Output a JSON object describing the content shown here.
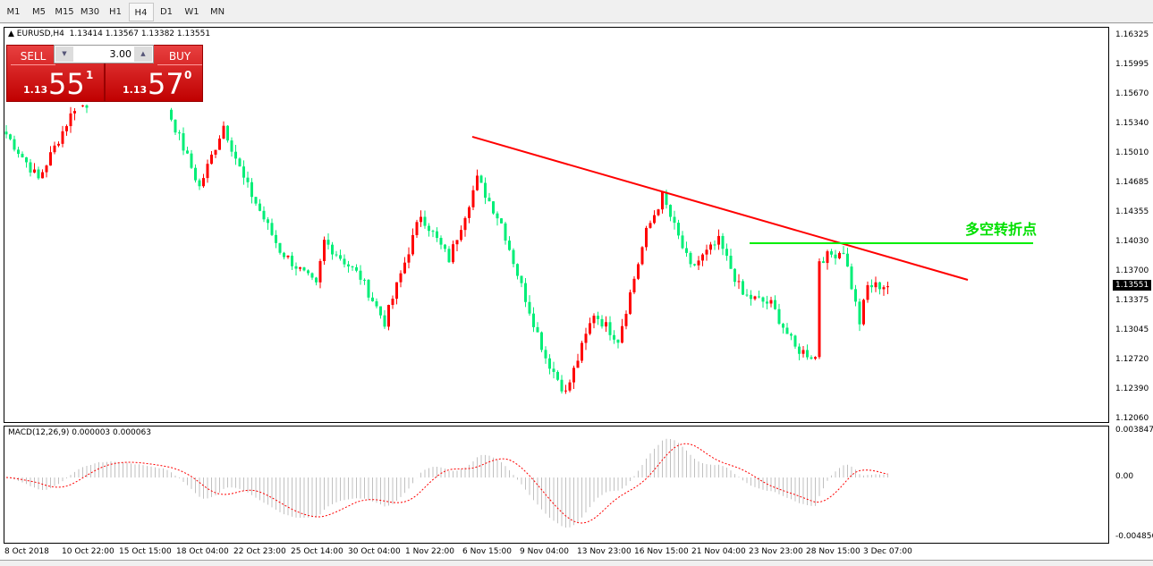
{
  "timeframes": [
    "M1",
    "M5",
    "M15",
    "M30",
    "H1",
    "H4",
    "D1",
    "W1",
    "MN"
  ],
  "active_timeframe": "H4",
  "symbol_line": {
    "symbol": "EURUSD,H4",
    "ohlc": "1.13414 1.13567 1.13382 1.13551"
  },
  "trade_panel": {
    "sell_label": "SELL",
    "buy_label": "BUY",
    "lot": "3.00",
    "sell_prefix": "1.13",
    "sell_big": "55",
    "sell_sup": "1",
    "buy_prefix": "1.13",
    "buy_big": "57",
    "buy_sup": "0"
  },
  "price_axis": [
    "1.16325",
    "1.15995",
    "1.15670",
    "1.15340",
    "1.15010",
    "1.14685",
    "1.14355",
    "1.14030",
    "1.13700",
    "1.13375",
    "1.13045",
    "1.12720",
    "1.12390",
    "1.12060"
  ],
  "current_price": "1.13551",
  "macd": {
    "label": "MACD(12,26,9) 0.000003 0.000063",
    "axis": [
      "0.003847",
      "0.00",
      "-0.004856"
    ]
  },
  "time_axis": [
    "8 Oct 2018",
    "10 Oct 22:00",
    "15 Oct 15:00",
    "18 Oct 04:00",
    "22 Oct 23:00",
    "25 Oct 14:00",
    "30 Oct 04:00",
    "1 Nov 22:00",
    "6 Nov 15:00",
    "9 Nov 04:00",
    "13 Nov 23:00",
    "16 Nov 15:00",
    "21 Nov 04:00",
    "23 Nov 23:00",
    "28 Nov 15:00",
    "3 Dec 07:00"
  ],
  "annotation": "多空转折点",
  "colors": {
    "bull": "#ff0000",
    "bear": "#00ee77",
    "trendline": "#ff0000",
    "level": "#00ee00",
    "macd_hist": "#c0c0c0",
    "signal": "#ff0000"
  },
  "chart_data": {
    "type": "candlestick",
    "price_range": [
      1.1206,
      1.16325
    ],
    "path": [
      [
        0,
        1.1523
      ],
      [
        8,
        1.1473
      ],
      [
        17,
        1.1553
      ],
      [
        26,
        1.1563
      ],
      [
        39,
        1.1563
      ],
      [
        48,
        1.1464
      ],
      [
        54,
        1.1533
      ],
      [
        59,
        1.1473
      ],
      [
        68,
        1.1394
      ],
      [
        77,
        1.1354
      ],
      [
        79,
        1.1404
      ],
      [
        88,
        1.1364
      ],
      [
        94,
        1.1314
      ],
      [
        103,
        1.1434
      ],
      [
        110,
        1.1384
      ],
      [
        117,
        1.1473
      ],
      [
        123,
        1.1424
      ],
      [
        128,
        1.1354
      ],
      [
        134,
        1.1275
      ],
      [
        139,
        1.1235
      ],
      [
        146,
        1.1324
      ],
      [
        152,
        1.1295
      ],
      [
        159,
        1.1414
      ],
      [
        163,
        1.1454
      ],
      [
        170,
        1.1374
      ],
      [
        177,
        1.1404
      ],
      [
        183,
        1.1344
      ],
      [
        190,
        1.1334
      ],
      [
        196,
        1.1285
      ],
      [
        201,
        1.1275
      ],
      [
        202,
        1.1384
      ],
      [
        208,
        1.1394
      ],
      [
        212,
        1.1314
      ],
      [
        214,
        1.1354
      ],
      [
        219,
        1.1355
      ]
    ],
    "trendline": [
      1.15202,
      1.13611
    ],
    "level": 1.14019
  }
}
